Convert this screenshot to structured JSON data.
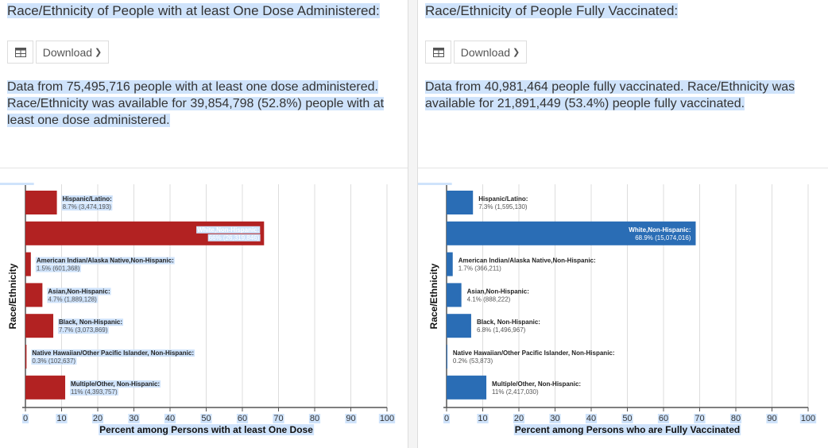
{
  "panels": [
    {
      "title": "Race/Ethnicity of People with at least One Dose Administered:",
      "table_icon": "table-icon",
      "download_label": "Download",
      "description": "Data from 75,495,716 people with at least one dose administered. Race/Ethnicity was available for 39,854,798 (52.8%) people with at least one dose administered."
    },
    {
      "title": "Race/Ethnicity of People Fully Vaccinated:",
      "table_icon": "table-icon",
      "download_label": "Download",
      "description": "Data from 40,981,464 people fully vaccinated. Race/Ethnicity was available for 21,891,449 (53.4%) people fully vaccinated."
    }
  ],
  "chart_data": [
    {
      "type": "bar",
      "orientation": "horizontal",
      "color": "#b22222",
      "xlabel": "Percent among Persons with at least One Dose",
      "ylabel": "Race/Ethnicity",
      "xlim": [
        0,
        100
      ],
      "xticks": [
        0,
        10,
        20,
        30,
        40,
        50,
        60,
        70,
        80,
        90,
        100
      ],
      "grid": true,
      "categories": [
        "Hispanic/Latino:",
        "White,Non-Hispanic:",
        "American Indian/Alaska Native,Non-Hispanic:",
        "Asian,Non-Hispanic:",
        "Black, Non-Hispanic:",
        "Native Hawaiian/Other Pacific Islander, Non-Hispanic:",
        "Multiple/Other, Non-Hispanic:"
      ],
      "values": [
        8.7,
        66,
        1.5,
        4.7,
        7.7,
        0.3,
        11
      ],
      "data_labels": [
        "8.7% (3,474,193)",
        "66% (26,319,846)",
        "1.5% (601,368)",
        "4.7% (1,889,128)",
        "7.7% (3,073,869)",
        "0.3% (102,637)",
        "11% (4,393,757)"
      ]
    },
    {
      "type": "bar",
      "orientation": "horizontal",
      "color": "#2a6db5",
      "xlabel": "Percent among Persons who are Fully Vaccinated",
      "ylabel": "Race/Ethnicity",
      "xlim": [
        0,
        100
      ],
      "xticks": [
        0,
        10,
        20,
        30,
        40,
        50,
        60,
        70,
        80,
        90,
        100
      ],
      "grid": true,
      "categories": [
        "Hispanic/Latino:",
        "White,Non-Hispanic:",
        "American Indian/Alaska Native,Non-Hispanic:",
        "Asian,Non-Hispanic:",
        "Black, Non-Hispanic:",
        "Native Hawaiian/Other Pacific Islander, Non-Hispanic:",
        "Multiple/Other, Non-Hispanic:"
      ],
      "values": [
        7.3,
        68.9,
        1.7,
        4.1,
        6.8,
        0.2,
        11
      ],
      "data_labels": [
        "7.3% (1,595,130)",
        "68.9% (15,074,016)",
        "1.7% (366,211)",
        "4.1% (888,222)",
        "6.8% (1,496,967)",
        "0.2% (53,873)",
        "11% (2,417,030)"
      ]
    }
  ]
}
